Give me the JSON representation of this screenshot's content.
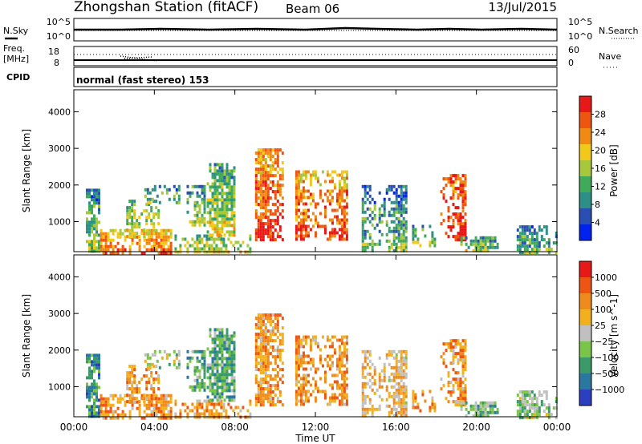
{
  "header": {
    "station": "Zhongshan Station (fitACF)",
    "beam": "Beam 06",
    "date": "13/Jul/2015"
  },
  "strips": {
    "nsky_label": "N.Sky",
    "nsky_ticks": [
      "10^5",
      "10^0"
    ],
    "nsearch_label": "N.Search",
    "nsearch_ticks": [
      "10^5",
      "10^0"
    ],
    "freq_label_1": "Freq.",
    "freq_label_2": "[MHz]",
    "freq_ticks": [
      "18",
      "8"
    ],
    "nave_label": "Nave",
    "nave_ticks": [
      "60",
      "0"
    ],
    "cpid_label": "CPID",
    "cpid_value": "normal (fast stereo) 153"
  },
  "axes": {
    "ylabel": "Slant Range [km]",
    "xlabel": "Time UT",
    "yticks": [
      "4000",
      "3000",
      "2000",
      "1000"
    ],
    "ytick_values": [
      4000,
      3000,
      2000,
      1000
    ],
    "xticks": [
      "00:00",
      "04:00",
      "08:00",
      "12:00",
      "16:00",
      "20:00",
      "00:00"
    ],
    "xtick_hours": [
      0,
      4,
      8,
      12,
      16,
      20,
      24
    ],
    "ylim": [
      180,
      4600
    ],
    "xlim": [
      0,
      24
    ]
  },
  "chart_data": [
    {
      "type": "heatmap",
      "title": "",
      "colorbar_label": "Power [dB]",
      "colorbar_ticks": [
        "28",
        "24",
        "20",
        "16",
        "12",
        "8",
        "4"
      ],
      "colors": [
        "#0022ee",
        "#2a4fb2",
        "#2e8f86",
        "#3faa5a",
        "#a8c83c",
        "#f2c81a",
        "#f08a14",
        "#ee5510",
        "#e81818"
      ],
      "clusters": [
        {
          "t0": 0.6,
          "t1": 1.3,
          "r0": 180,
          "r1": 1900,
          "v": 0.35
        },
        {
          "t0": 1.3,
          "t1": 4.8,
          "r0": 180,
          "r1": 800,
          "v": 0.75
        },
        {
          "t0": 2.6,
          "t1": 4.2,
          "r0": 600,
          "r1": 1600,
          "v": 0.5
        },
        {
          "t0": 3.5,
          "t1": 5.2,
          "r0": 1500,
          "r1": 2000,
          "v": 0.35
        },
        {
          "t0": 5.0,
          "t1": 8.8,
          "r0": 180,
          "r1": 650,
          "v": 0.5
        },
        {
          "t0": 5.6,
          "t1": 6.5,
          "r0": 900,
          "r1": 2000,
          "v": 0.4
        },
        {
          "t0": 6.6,
          "t1": 8.0,
          "r0": 600,
          "r1": 2600,
          "v": 0.45
        },
        {
          "t0": 9.0,
          "t1": 10.4,
          "r0": 500,
          "r1": 3000,
          "v": 0.85
        },
        {
          "t0": 11.0,
          "t1": 13.6,
          "r0": 500,
          "r1": 2400,
          "v": 0.8
        },
        {
          "t0": 14.3,
          "t1": 16.5,
          "r0": 180,
          "r1": 2000,
          "v": 0.3
        },
        {
          "t0": 16.8,
          "t1": 17.9,
          "r0": 300,
          "r1": 1000,
          "v": 0.35
        },
        {
          "t0": 18.2,
          "t1": 19.4,
          "r0": 500,
          "r1": 2300,
          "v": 0.95
        },
        {
          "t0": 19.2,
          "t1": 21.0,
          "r0": 180,
          "r1": 600,
          "v": 0.4
        },
        {
          "t0": 22.0,
          "t1": 24.0,
          "r0": 180,
          "r1": 900,
          "v": 0.3
        }
      ]
    },
    {
      "type": "heatmap",
      "title": "",
      "colorbar_label": "Velocity [m s^-1]",
      "colorbar_ticks": [
        "1000",
        "500",
        "100",
        "25",
        "−25",
        "−100",
        "−500",
        "−1000"
      ],
      "colors": [
        "#2b3fbf",
        "#2a78a0",
        "#3a9a68",
        "#7bc44a",
        "#c0c0c0",
        "#f2b01e",
        "#ef8a1c",
        "#ee5512",
        "#e81818"
      ],
      "clusters": [
        {
          "t0": 0.6,
          "t1": 1.3,
          "r0": 180,
          "r1": 1900,
          "v": 0.2
        },
        {
          "t0": 1.3,
          "t1": 4.8,
          "r0": 180,
          "r1": 800,
          "v": 0.72
        },
        {
          "t0": 2.6,
          "t1": 4.2,
          "r0": 600,
          "r1": 1600,
          "v": 0.7
        },
        {
          "t0": 3.5,
          "t1": 5.2,
          "r0": 1500,
          "r1": 2000,
          "v": 0.45
        },
        {
          "t0": 5.0,
          "t1": 8.8,
          "r0": 180,
          "r1": 650,
          "v": 0.7
        },
        {
          "t0": 5.6,
          "t1": 6.5,
          "r0": 900,
          "r1": 2000,
          "v": 0.3
        },
        {
          "t0": 6.6,
          "t1": 8.0,
          "r0": 600,
          "r1": 2600,
          "v": 0.3
        },
        {
          "t0": 9.0,
          "t1": 10.4,
          "r0": 500,
          "r1": 3000,
          "v": 0.7
        },
        {
          "t0": 11.0,
          "t1": 13.6,
          "r0": 500,
          "r1": 2400,
          "v": 0.72
        },
        {
          "t0": 14.3,
          "t1": 16.5,
          "r0": 180,
          "r1": 2000,
          "v": 0.62
        },
        {
          "t0": 16.8,
          "t1": 17.9,
          "r0": 300,
          "r1": 1000,
          "v": 0.7
        },
        {
          "t0": 18.2,
          "t1": 19.4,
          "r0": 500,
          "r1": 2300,
          "v": 0.72
        },
        {
          "t0": 19.2,
          "t1": 21.0,
          "r0": 180,
          "r1": 600,
          "v": 0.35
        },
        {
          "t0": 22.0,
          "t1": 24.0,
          "r0": 180,
          "r1": 900,
          "v": 0.4
        }
      ]
    }
  ]
}
